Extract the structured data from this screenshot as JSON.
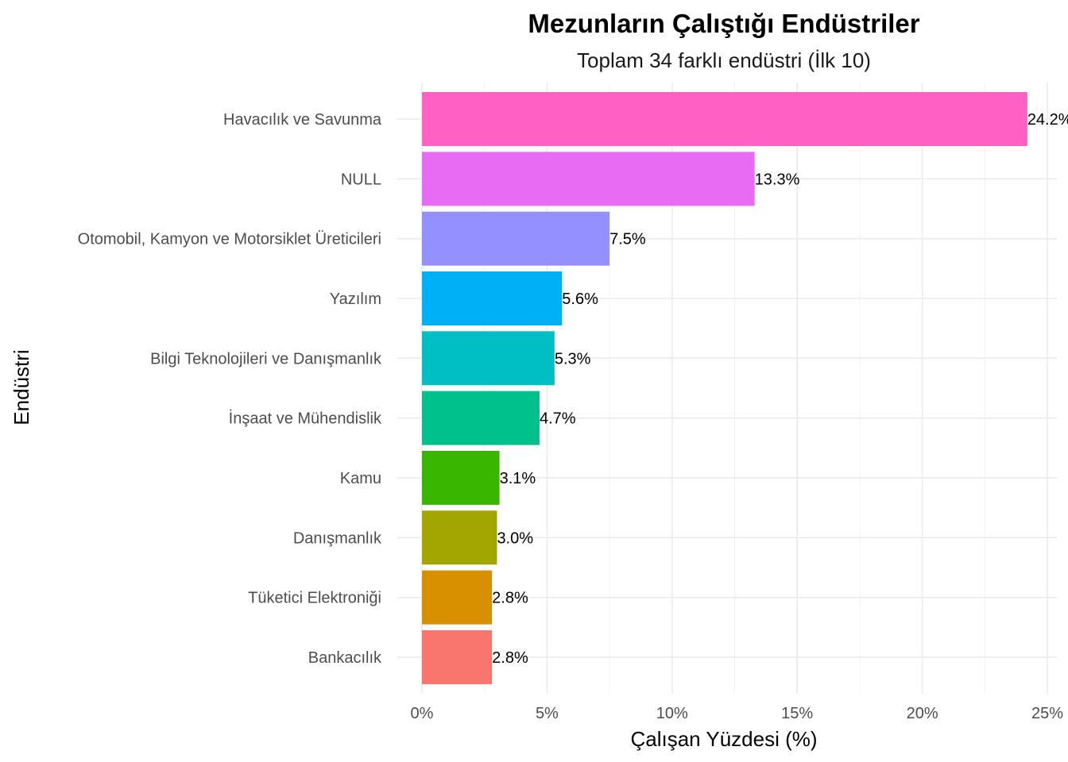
{
  "chart_data": {
    "type": "bar",
    "orientation": "horizontal",
    "title": "Mezunların Çalıştığı Endüstriler",
    "subtitle": "Toplam 34 farklı endüstri (İlk 10)",
    "xlabel": "Çalışan Yüzdesi (%)",
    "ylabel": "Endüstri",
    "xlim": [
      0,
      25
    ],
    "x_ticks": [
      0,
      5,
      10,
      15,
      20,
      25
    ],
    "x_tick_labels": [
      "0%",
      "5%",
      "10%",
      "15%",
      "20%",
      "25%"
    ],
    "grid": true,
    "legend": "none",
    "categories": [
      "Havacılık ve Savunma",
      "NULL",
      "Otomobil, Kamyon ve Motorsiklet Üreticileri",
      "Yazılım",
      "Bilgi Teknolojileri ve Danışmanlık",
      "İnşaat ve Mühendislik",
      "Kamu",
      "Danışmanlık",
      "Tüketici Elektroniği",
      "Bankacılık"
    ],
    "values": [
      24.2,
      13.3,
      7.5,
      5.6,
      5.3,
      4.7,
      3.1,
      3.0,
      2.8,
      2.8
    ],
    "value_labels": [
      "24.2%",
      "13.3%",
      "7.5%",
      "5.6%",
      "5.3%",
      "4.7%",
      "3.1%",
      "3.0%",
      "2.8%",
      "2.8%"
    ],
    "colors": [
      "#FF61C3",
      "#E76BF3",
      "#9590FF",
      "#00B0F6",
      "#00BFC4",
      "#00C08B",
      "#39B600",
      "#A3A500",
      "#D89000",
      "#F8766D"
    ]
  }
}
